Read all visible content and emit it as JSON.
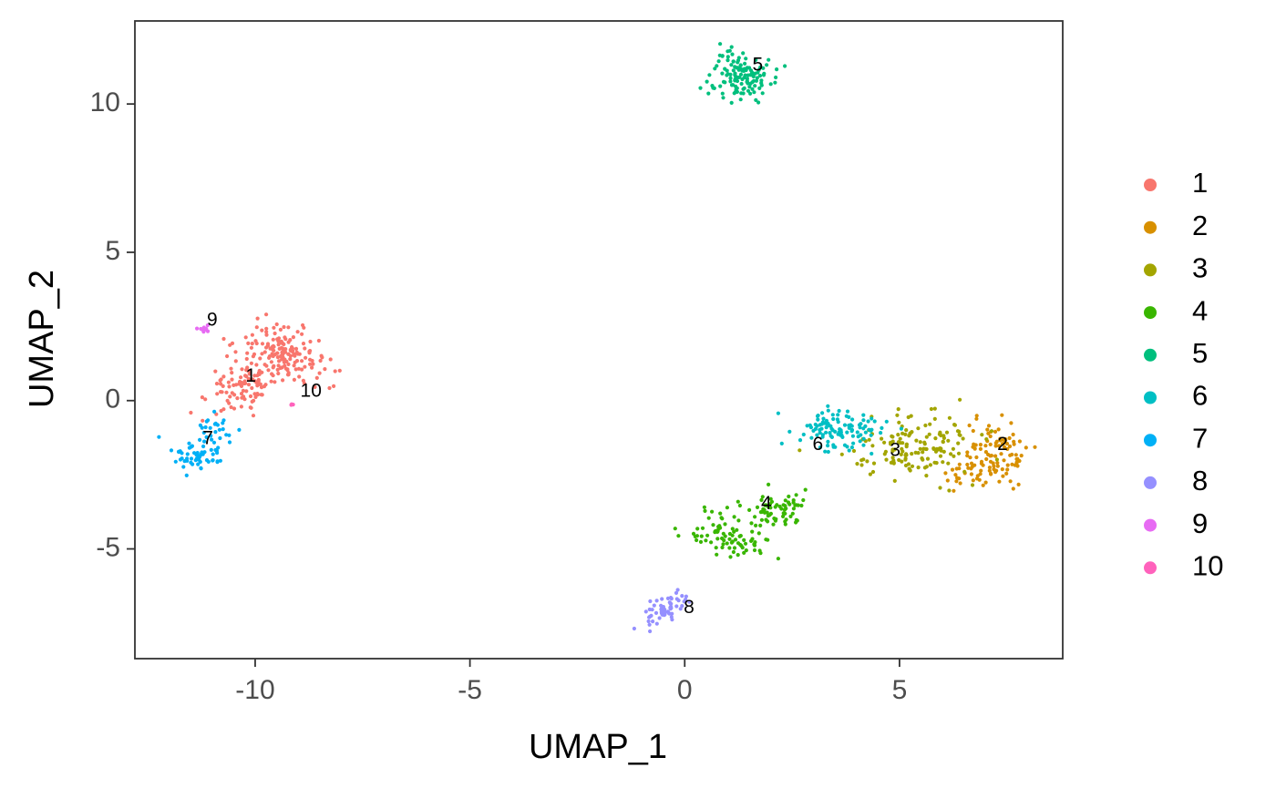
{
  "chart_data": {
    "type": "scatter",
    "xlabel": "UMAP_1",
    "ylabel": "UMAP_2",
    "xlim": [
      -12.8,
      8.8
    ],
    "ylim": [
      -8.7,
      12.8
    ],
    "xticks": [
      -10,
      -5,
      0,
      5
    ],
    "yticks": [
      -5,
      0,
      5,
      10
    ],
    "xtick_labels": [
      "-10",
      "-5",
      "0",
      "5"
    ],
    "ytick_labels": [
      "-5",
      "0",
      "5",
      "10"
    ],
    "grid": false,
    "legend_position": "right",
    "series": [
      {
        "name": "1",
        "color": "#F8766D",
        "label_pos": [
          -10.1,
          0.8
        ],
        "clusters": [
          [
            -9.3,
            1.6,
            0.55,
            0.45,
            -0.6,
            170
          ],
          [
            -10.3,
            0.4,
            0.35,
            0.45,
            -0.5,
            90
          ]
        ]
      },
      {
        "name": "2",
        "color": "#D89000",
        "label_pos": [
          7.4,
          -1.5
        ],
        "clusters": [
          [
            7.2,
            -1.8,
            0.35,
            0.55,
            0.0,
            90
          ],
          [
            6.6,
            -2.5,
            0.3,
            0.35,
            0.0,
            30
          ]
        ]
      },
      {
        "name": "3",
        "color": "#A3A500",
        "label_pos": [
          4.9,
          -1.7
        ],
        "clusters": [
          [
            5.3,
            -1.5,
            0.75,
            0.5,
            0.2,
            150
          ]
        ]
      },
      {
        "name": "4",
        "color": "#39B600",
        "label_pos": [
          1.9,
          -3.5
        ],
        "clusters": [
          [
            1.0,
            -4.5,
            0.45,
            0.35,
            -0.6,
            80
          ],
          [
            2.1,
            -3.7,
            0.45,
            0.3,
            0.2,
            70
          ]
        ]
      },
      {
        "name": "5",
        "color": "#00BF7D",
        "label_pos": [
          1.7,
          11.3
        ],
        "clusters": [
          [
            1.3,
            10.9,
            0.35,
            0.45,
            0.0,
            130
          ]
        ]
      },
      {
        "name": "6",
        "color": "#00BFC4",
        "label_pos": [
          3.1,
          -1.5
        ],
        "clusters": [
          [
            3.6,
            -1.0,
            0.5,
            0.4,
            0.0,
            110
          ]
        ]
      },
      {
        "name": "7",
        "color": "#00B0F6",
        "label_pos": [
          -11.1,
          -1.3
        ],
        "clusters": [
          [
            -11.4,
            -1.8,
            0.3,
            0.25,
            0.0,
            55
          ],
          [
            -10.9,
            -1.0,
            0.3,
            0.2,
            -0.8,
            25
          ]
        ]
      },
      {
        "name": "8",
        "color": "#9590FF",
        "label_pos": [
          0.1,
          -7.0
        ],
        "clusters": [
          [
            -0.45,
            -7.1,
            0.18,
            0.35,
            -0.8,
            60
          ]
        ]
      },
      {
        "name": "9",
        "color": "#E76BF3",
        "label_pos": [
          -11.0,
          2.7
        ],
        "clusters": [
          [
            -11.2,
            2.35,
            0.1,
            0.06,
            0.0,
            10
          ]
        ]
      },
      {
        "name": "10",
        "color": "#FF62BC",
        "label_pos": [
          -8.7,
          0.3
        ],
        "clusters": [
          [
            -9.15,
            -0.15,
            0.06,
            0.06,
            0.0,
            3
          ]
        ]
      }
    ]
  }
}
